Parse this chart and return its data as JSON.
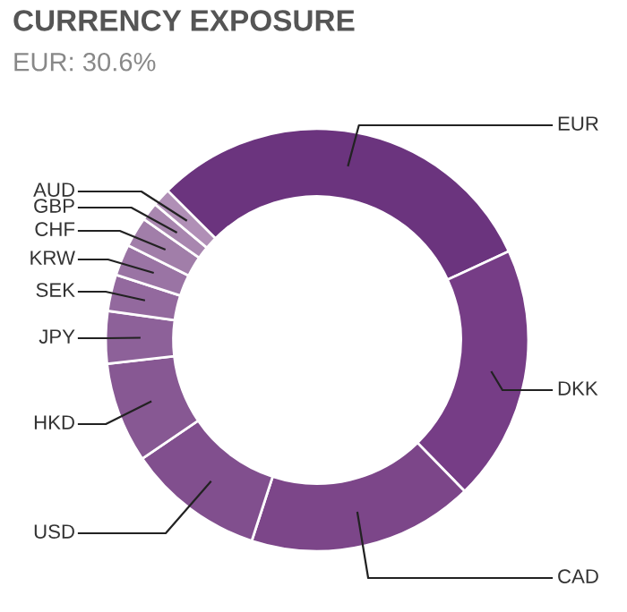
{
  "chart_data": {
    "type": "donut",
    "title": "CURRENCY EXPOSURE",
    "subtitle": "EUR: 30.6%",
    "categories": [
      "EUR",
      "DKK",
      "CAD",
      "USD",
      "HKD",
      "JPY",
      "SEK",
      "KRW",
      "CHF",
      "GBP",
      "AUD"
    ],
    "values": [
      30.6,
      19.6,
      17.3,
      10.5,
      7.7,
      4.0,
      2.8,
      2.4,
      2.3,
      1.4,
      1.4
    ],
    "colors": [
      "#6b347e",
      "#763d86",
      "#7c4689",
      "#814f8e",
      "#875893",
      "#8d6199",
      "#93699e",
      "#9a74a4",
      "#a17ea9",
      "#a886af",
      "#b08fb6"
    ],
    "legend": false
  }
}
